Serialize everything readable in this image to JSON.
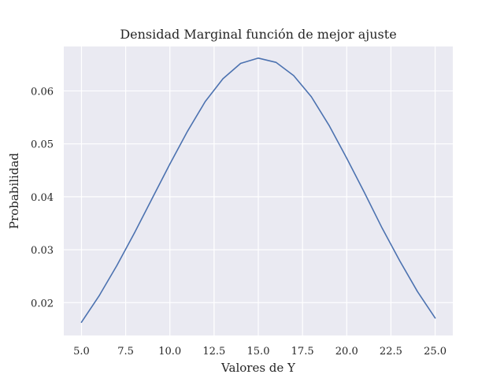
{
  "chart_data": {
    "type": "line",
    "title": "Densidad Marginal función de mejor ajuste",
    "xlabel": "Valores de Y",
    "ylabel": "Probabilidad",
    "xlim": [
      4.0,
      26.0
    ],
    "ylim": [
      0.0138,
      0.0684
    ],
    "xticks": [
      5.0,
      7.5,
      10.0,
      12.5,
      15.0,
      17.5,
      20.0,
      22.5,
      25.0
    ],
    "xtick_labels": [
      "5.0",
      "7.5",
      "10.0",
      "12.5",
      "15.0",
      "17.5",
      "20.0",
      "22.5",
      "25.0"
    ],
    "yticks": [
      0.02,
      0.03,
      0.04,
      0.05,
      0.06
    ],
    "ytick_labels": [
      "0.02",
      "0.03",
      "0.04",
      "0.05",
      "0.06"
    ],
    "grid": true,
    "background": "#eaeaf2",
    "series": [
      {
        "color": "#4c72b0",
        "x": [
          5,
          6,
          7,
          8,
          9,
          10,
          11,
          12,
          13,
          14,
          15,
          16,
          17,
          18,
          19,
          20,
          21,
          22,
          23,
          24,
          25
        ],
        "y": [
          0.0163,
          0.0213,
          0.027,
          0.0332,
          0.0397,
          0.0462,
          0.0524,
          0.058,
          0.0623,
          0.0652,
          0.0662,
          0.0654,
          0.0629,
          0.0589,
          0.0535,
          0.0473,
          0.0408,
          0.0341,
          0.0279,
          0.0221,
          0.0171
        ]
      }
    ]
  }
}
